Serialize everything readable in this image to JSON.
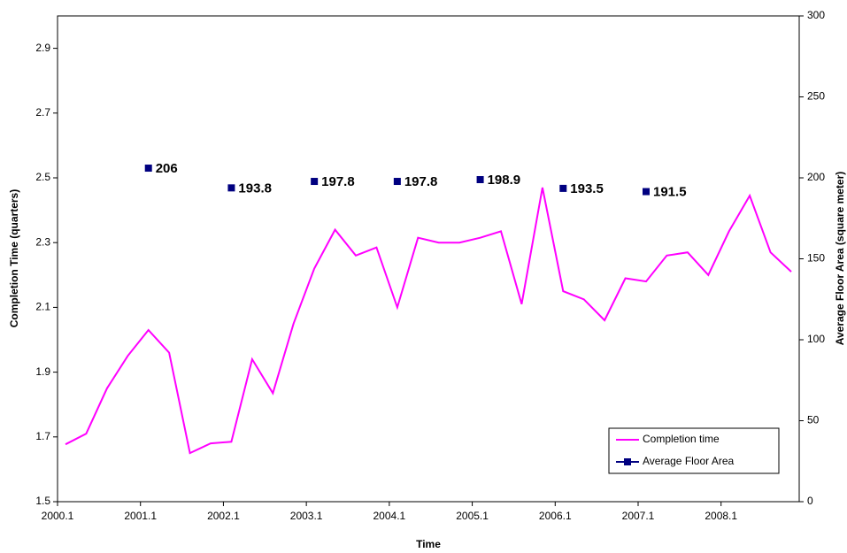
{
  "chart_data": {
    "type": "line",
    "x_label": "Time",
    "y_label": "Completion Time (quarters)",
    "y2_label": "Average Floor Area (square meter)",
    "categories": [
      "2000.1",
      null,
      null,
      null,
      "2001.1",
      null,
      null,
      null,
      "2002.1",
      null,
      null,
      null,
      "2003.1",
      null,
      null,
      null,
      "2004.1",
      null,
      null,
      null,
      "2005.1",
      null,
      null,
      null,
      "2006.1",
      null,
      null,
      null,
      "2007.1",
      null,
      null,
      null,
      "2008.1",
      null,
      null,
      null
    ],
    "series": [
      {
        "name": "Completion time",
        "color": "#ff00ff",
        "axis": "y",
        "values": [
          1.677,
          1.71,
          1.85,
          1.95,
          2.03,
          1.96,
          1.65,
          1.68,
          1.685,
          1.94,
          1.835,
          2.05,
          2.22,
          2.34,
          2.26,
          2.285,
          2.1,
          2.315,
          2.3,
          2.3,
          2.315,
          2.335,
          2.11,
          2.47,
          2.15,
          2.125,
          2.06,
          2.19,
          2.18,
          2.26,
          2.27,
          2.2,
          2.335,
          2.445,
          2.27,
          2.21
        ]
      },
      {
        "name": "Average Floor Area",
        "color": "#000080",
        "axis": "y2",
        "line": false,
        "marker": "square",
        "values": [
          null,
          null,
          null,
          null,
          206,
          null,
          null,
          null,
          193.8,
          null,
          null,
          null,
          197.8,
          null,
          null,
          null,
          197.8,
          null,
          null,
          null,
          198.9,
          null,
          null,
          null,
          193.5,
          null,
          null,
          null,
          191.5,
          null,
          null,
          null,
          null,
          null,
          null,
          null
        ]
      }
    ],
    "ylim": [
      1.5,
      3.0
    ],
    "yticks": [
      1.5,
      1.7,
      1.9,
      2.1,
      2.3,
      2.5,
      2.7,
      2.9
    ],
    "y2lim": [
      0,
      300
    ],
    "y2ticks": [
      0,
      50,
      100,
      150,
      200,
      250,
      300
    ],
    "legend": "lower right"
  }
}
